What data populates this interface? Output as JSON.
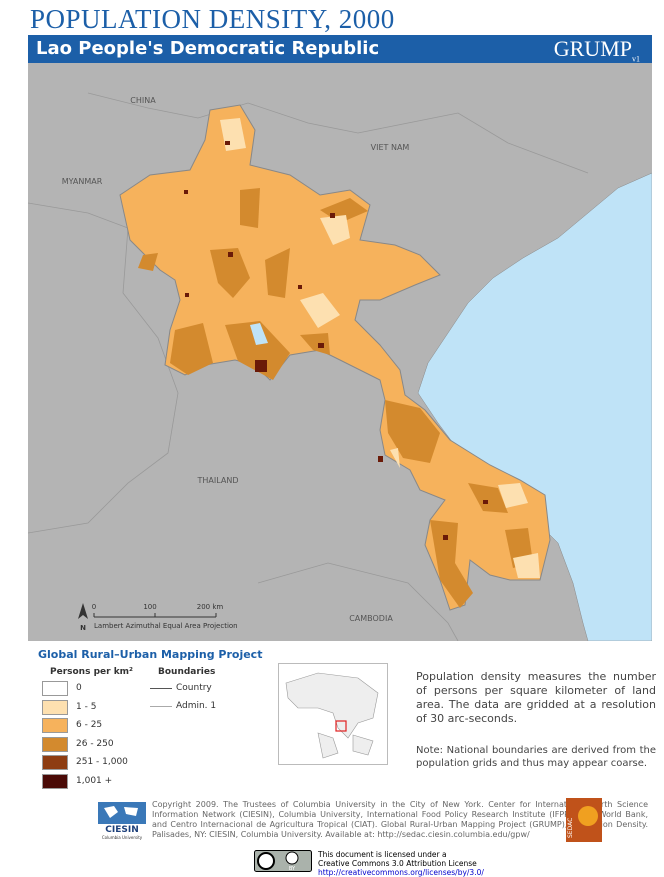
{
  "header": {
    "title": "POPULATION DENSITY, 2000",
    "subtitle": "Lao People's Democratic Republic",
    "logo": "GRUMP",
    "logo_version": "v1"
  },
  "map_labels": {
    "china": "CHINA",
    "viet_nam": "VIET NAM",
    "myanmar": "MYANMAR",
    "thailand": "THAILAND",
    "cambodia": "CAMBODIA"
  },
  "scale_bar": {
    "north": "N",
    "ticks": [
      "0",
      "100",
      "200 km"
    ],
    "projection": "Lambert Azimuthal Equal Area Projection"
  },
  "project": "Global Rural–Urban Mapping Project",
  "legend": {
    "title": "Persons per km²",
    "classes": [
      {
        "label": "0",
        "color": "#ffffff"
      },
      {
        "label": "1 - 5",
        "color": "#fde0b0"
      },
      {
        "label": "6 - 25",
        "color": "#f6b25c"
      },
      {
        "label": "26 - 250",
        "color": "#d38a2e"
      },
      {
        "label": "251 - 1,000",
        "color": "#8e3d12"
      },
      {
        "label": "1,001 +",
        "color": "#4a0a06"
      }
    ]
  },
  "boundaries": {
    "title": "Boundaries",
    "items": [
      {
        "label": "Country",
        "color": "#555555"
      },
      {
        "label": "Admin. 1",
        "color": "#aaaaaa"
      }
    ]
  },
  "description": "Population density measures the number of persons per square kilometer of land area. The data are gridded at a resolution of 30 arc-seconds.",
  "note": "Note: National boundaries are derived from the population grids and thus may appear coarse.",
  "footer": {
    "ciesin": "CIESIN",
    "university": "Columbia University",
    "copyright": "Copyright 2009. The Trustees of Columbia University in the City of New York. Center for International Earth Science Information Network (CIESIN), Columbia University, International Food Policy Research Institute (IFPRI), the World Bank, and Centro Internacional de Agricultura Tropical (CIAT). Global Rural-Urban Mapping Project (GRUMP), Population Density. Palisades, NY: CIESIN, Columbia University. Available at: http://sedac.ciesin.columbia.edu/gpw/",
    "sedac": "SEDAC",
    "cc_badge": "BY",
    "license_lines": [
      "This document is licensed under a",
      "Creative Commons 3.0 Attribution License",
      "http://creativecommons.org/licenses/by/3.0/"
    ]
  }
}
